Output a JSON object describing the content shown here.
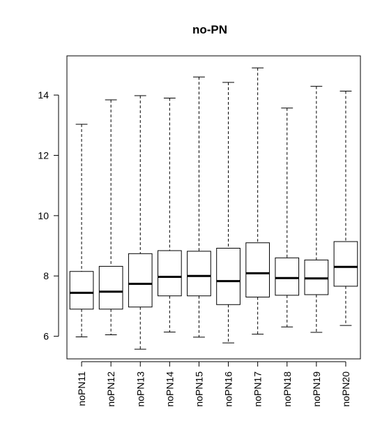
{
  "chart_data": {
    "type": "boxplot",
    "title": "no-PN",
    "xlabel": "",
    "ylabel": "",
    "ylim": [
      5.25,
      15.3
    ],
    "yticks": [
      6,
      8,
      10,
      12,
      14
    ],
    "categories": [
      "noPN11",
      "noPN12",
      "noPN13",
      "noPN14",
      "noPN15",
      "noPN16",
      "noPN17",
      "noPN18",
      "noPN19",
      "noPN20"
    ],
    "boxes": [
      {
        "min": 5.98,
        "q1": 6.9,
        "median": 7.44,
        "q3": 8.15,
        "max": 13.03
      },
      {
        "min": 6.05,
        "q1": 6.9,
        "median": 7.48,
        "q3": 8.32,
        "max": 13.84
      },
      {
        "min": 5.57,
        "q1": 6.97,
        "median": 7.74,
        "q3": 8.74,
        "max": 13.98
      },
      {
        "min": 6.14,
        "q1": 7.34,
        "median": 7.97,
        "q3": 8.84,
        "max": 13.9
      },
      {
        "min": 5.97,
        "q1": 7.34,
        "median": 8.0,
        "q3": 8.82,
        "max": 14.6
      },
      {
        "min": 5.78,
        "q1": 7.05,
        "median": 7.83,
        "q3": 8.92,
        "max": 14.42
      },
      {
        "min": 6.07,
        "q1": 7.3,
        "median": 8.09,
        "q3": 9.1,
        "max": 14.9
      },
      {
        "min": 6.31,
        "q1": 7.36,
        "median": 7.93,
        "q3": 8.6,
        "max": 13.57
      },
      {
        "min": 6.13,
        "q1": 7.38,
        "median": 7.92,
        "q3": 8.53,
        "max": 14.29
      },
      {
        "min": 6.36,
        "q1": 7.66,
        "median": 8.3,
        "q3": 9.14,
        "max": 14.13
      }
    ],
    "colors": {
      "box_fill": "#ffffff",
      "stroke": "#000000"
    },
    "grid": false,
    "legend": "none"
  }
}
